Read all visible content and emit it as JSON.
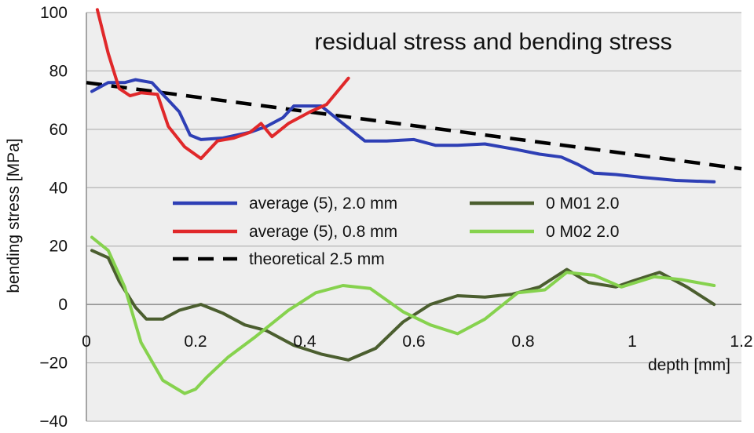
{
  "chart_data": {
    "type": "line",
    "title": "residual stress and bending stress",
    "xlabel": "depth [mm]",
    "ylabel": "bending stress [MPa]",
    "xlim": [
      0,
      1.2
    ],
    "ylim": [
      -40,
      100
    ],
    "grid": "horizontal",
    "legend_position": "center",
    "x_tick_labels": [
      "0",
      "0.2",
      "0.4",
      "0.6",
      "0.8",
      "1",
      "1.2"
    ],
    "x_ticks": [
      0,
      0.2,
      0.4,
      0.6,
      0.8,
      1.0,
      1.2
    ],
    "y_tick_labels": [
      "100",
      "80",
      "60",
      "40",
      "20",
      "0",
      "−20",
      "−40"
    ],
    "y_ticks": [
      100,
      80,
      60,
      40,
      20,
      0,
      -20,
      -40
    ],
    "series": [
      {
        "name": "average (5), 2.0 mm",
        "color": "#2e3fb5",
        "style": "solid",
        "x": [
          0.01,
          0.04,
          0.07,
          0.09,
          0.12,
          0.14,
          0.17,
          0.19,
          0.21,
          0.25,
          0.3,
          0.33,
          0.36,
          0.38,
          0.43,
          0.47,
          0.51,
          0.55,
          0.6,
          0.64,
          0.68,
          0.73,
          0.79,
          0.83,
          0.87,
          0.9,
          0.93,
          0.97,
          1.02,
          1.08,
          1.15
        ],
        "y": [
          73,
          76,
          76,
          77,
          76,
          72,
          66,
          58,
          56.5,
          57,
          59,
          61,
          64,
          68,
          68,
          62,
          56,
          56,
          56.5,
          54.5,
          54.5,
          55,
          53,
          51.5,
          50.5,
          48,
          45,
          44.5,
          43.5,
          42.5,
          42
        ]
      },
      {
        "name": "average (5), 0.8 mm",
        "color": "#e0282a",
        "style": "solid",
        "x": [
          0.02,
          0.04,
          0.06,
          0.08,
          0.1,
          0.13,
          0.15,
          0.18,
          0.21,
          0.24,
          0.27,
          0.3,
          0.32,
          0.34,
          0.37,
          0.41,
          0.44,
          0.48
        ],
        "y": [
          101,
          86,
          74,
          71.5,
          72.5,
          72,
          61,
          54,
          50,
          56,
          57,
          59,
          62,
          57.5,
          62,
          66,
          68.5,
          77.5
        ]
      },
      {
        "name": "0 M01 2.0",
        "color": "#4b5e2f",
        "style": "solid",
        "x": [
          0.01,
          0.04,
          0.06,
          0.09,
          0.11,
          0.14,
          0.17,
          0.21,
          0.25,
          0.29,
          0.33,
          0.38,
          0.43,
          0.48,
          0.53,
          0.58,
          0.63,
          0.68,
          0.73,
          0.78,
          0.83,
          0.88,
          0.92,
          0.97,
          1.0,
          1.05,
          1.1,
          1.15
        ],
        "y": [
          18.5,
          16,
          8,
          -1,
          -5,
          -5,
          -2,
          0,
          -3,
          -7,
          -9,
          -14,
          -17,
          -19,
          -15,
          -6,
          0,
          3,
          2.5,
          3.5,
          6,
          12,
          7.5,
          6,
          8,
          11,
          6,
          0
        ]
      },
      {
        "name": "0 M02 2.0",
        "color": "#86d24e",
        "style": "solid",
        "x": [
          0.01,
          0.04,
          0.07,
          0.1,
          0.14,
          0.18,
          0.2,
          0.22,
          0.26,
          0.31,
          0.37,
          0.42,
          0.47,
          0.52,
          0.58,
          0.63,
          0.68,
          0.73,
          0.79,
          0.84,
          0.88,
          0.93,
          0.98,
          1.04,
          1.09,
          1.15
        ],
        "y": [
          23,
          18.5,
          6,
          -13,
          -26,
          -30.5,
          -29,
          -25,
          -18,
          -11,
          -2,
          4,
          6.5,
          5.5,
          -2.5,
          -7,
          -10,
          -5,
          4,
          5,
          11,
          10,
          6,
          9.5,
          8.5,
          6.5
        ]
      },
      {
        "name": "theoretical 2.5 mm",
        "color": "#000000",
        "style": "dashed",
        "x": [
          0,
          1.2
        ],
        "y": [
          76,
          46.5
        ]
      }
    ]
  }
}
